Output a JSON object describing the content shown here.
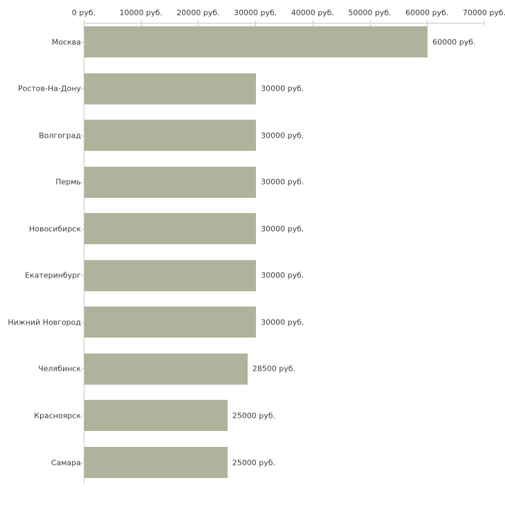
{
  "chart_data": {
    "type": "bar",
    "orientation": "horizontal",
    "title": "",
    "xlabel": "",
    "ylabel": "",
    "categories": [
      "Москва",
      "Ростов-На-Дону",
      "Волгоград",
      "Пермь",
      "Новосибирск",
      "Екатеринбург",
      "Нижний Новгород",
      "Челябинск",
      "Красноярск",
      "Самара"
    ],
    "values": [
      60000,
      30000,
      30000,
      30000,
      30000,
      30000,
      30000,
      28500,
      25000,
      25000
    ],
    "value_labels": [
      "60000 руб.",
      "30000 руб.",
      "30000 руб.",
      "30000 руб.",
      "30000 руб.",
      "30000 руб.",
      "30000 руб.",
      "28500 руб.",
      "25000 руб.",
      "25000 руб."
    ],
    "x_ticks": [
      0,
      10000,
      20000,
      30000,
      40000,
      50000,
      60000,
      70000
    ],
    "x_tick_labels": [
      "0 руб.",
      "10000 руб.",
      "20000 руб.",
      "30000 руб.",
      "40000 руб.",
      "50000 руб.",
      "60000 руб.",
      "70000 руб."
    ],
    "xlim": [
      0,
      70000
    ],
    "grid": false,
    "legend": null,
    "colors": {
      "bar": "#aeb49b",
      "axis_line": "#c4c4c4",
      "tick_mark": "#cfcc9e",
      "text": "#3c3c3c",
      "background": "#ffffff"
    }
  }
}
